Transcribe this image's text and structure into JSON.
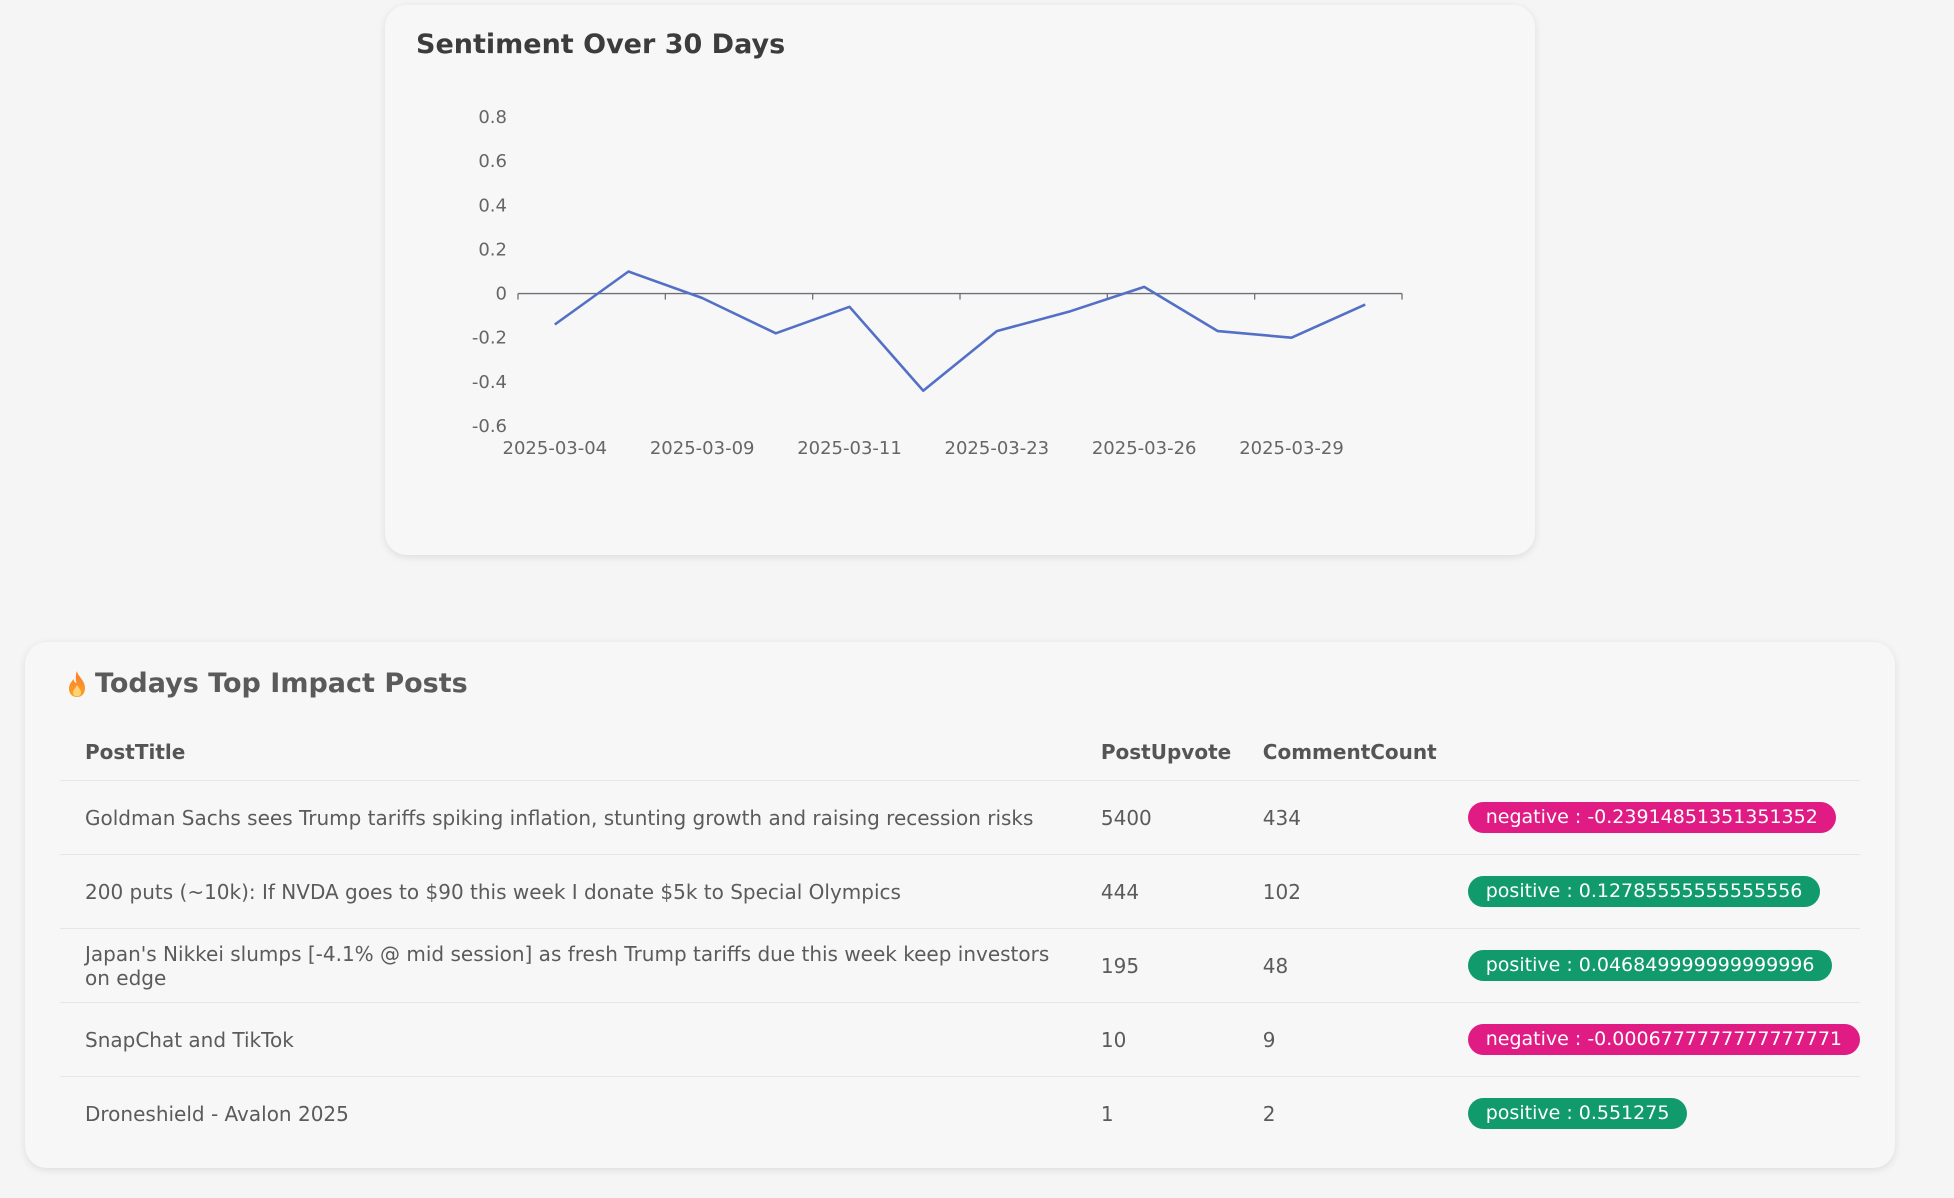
{
  "chart_card": {
    "title": "Sentiment Over 30 Days"
  },
  "chart_data": {
    "type": "line",
    "title": "Sentiment Over 30 Days",
    "xlabel": "",
    "ylabel": "",
    "ylim": [
      -0.6,
      0.8
    ],
    "yticks": [
      "0.8",
      "0.6",
      "0.4",
      "0.2",
      "0",
      "-0.2",
      "-0.4",
      "-0.6"
    ],
    "x_tick_labels": [
      "2025-03-04",
      "2025-03-09",
      "2025-03-11",
      "2025-03-23",
      "2025-03-26",
      "2025-03-29"
    ],
    "grid": false,
    "series_color": "#5470c6",
    "series": [
      {
        "values": [
          -0.14,
          0.1,
          -0.02,
          -0.18,
          -0.06,
          -0.44,
          -0.17,
          -0.08,
          0.03,
          -0.17,
          -0.2,
          -0.05
        ]
      }
    ]
  },
  "posts": {
    "heading": "Todays Top Impact Posts",
    "heading_icon": "fire-icon",
    "columns": {
      "title": "PostTitle",
      "upvote": "PostUpvote",
      "comments": "CommentCount"
    },
    "rows": [
      {
        "title": "Goldman Sachs sees Trump tariffs spiking inflation, stunting growth and raising recession risks",
        "upvote": "5400",
        "comments": "434",
        "sentiment": "negative",
        "badge": "negative : -0.23914851351351352"
      },
      {
        "title": "200 puts (~10k): If NVDA goes to $90 this week I donate $5k to Special Olympics",
        "upvote": "444",
        "comments": "102",
        "sentiment": "positive",
        "badge": "positive : 0.12785555555555556"
      },
      {
        "title": "Japan's Nikkei slumps [-4.1% @ mid session] as fresh Trump tariffs due this week keep investors on edge",
        "upvote": "195",
        "comments": "48",
        "sentiment": "positive",
        "badge": "positive : 0.046849999999999996"
      },
      {
        "title": "SnapChat and TikTok",
        "upvote": "10",
        "comments": "9",
        "sentiment": "negative",
        "badge": "negative : -0.0006777777777777771"
      },
      {
        "title": "Droneshield - Avalon 2025",
        "upvote": "1",
        "comments": "2",
        "sentiment": "positive",
        "badge": "positive : 0.551275"
      }
    ],
    "colors": {
      "negative": "#e01b84",
      "positive": "#119a6c"
    }
  }
}
